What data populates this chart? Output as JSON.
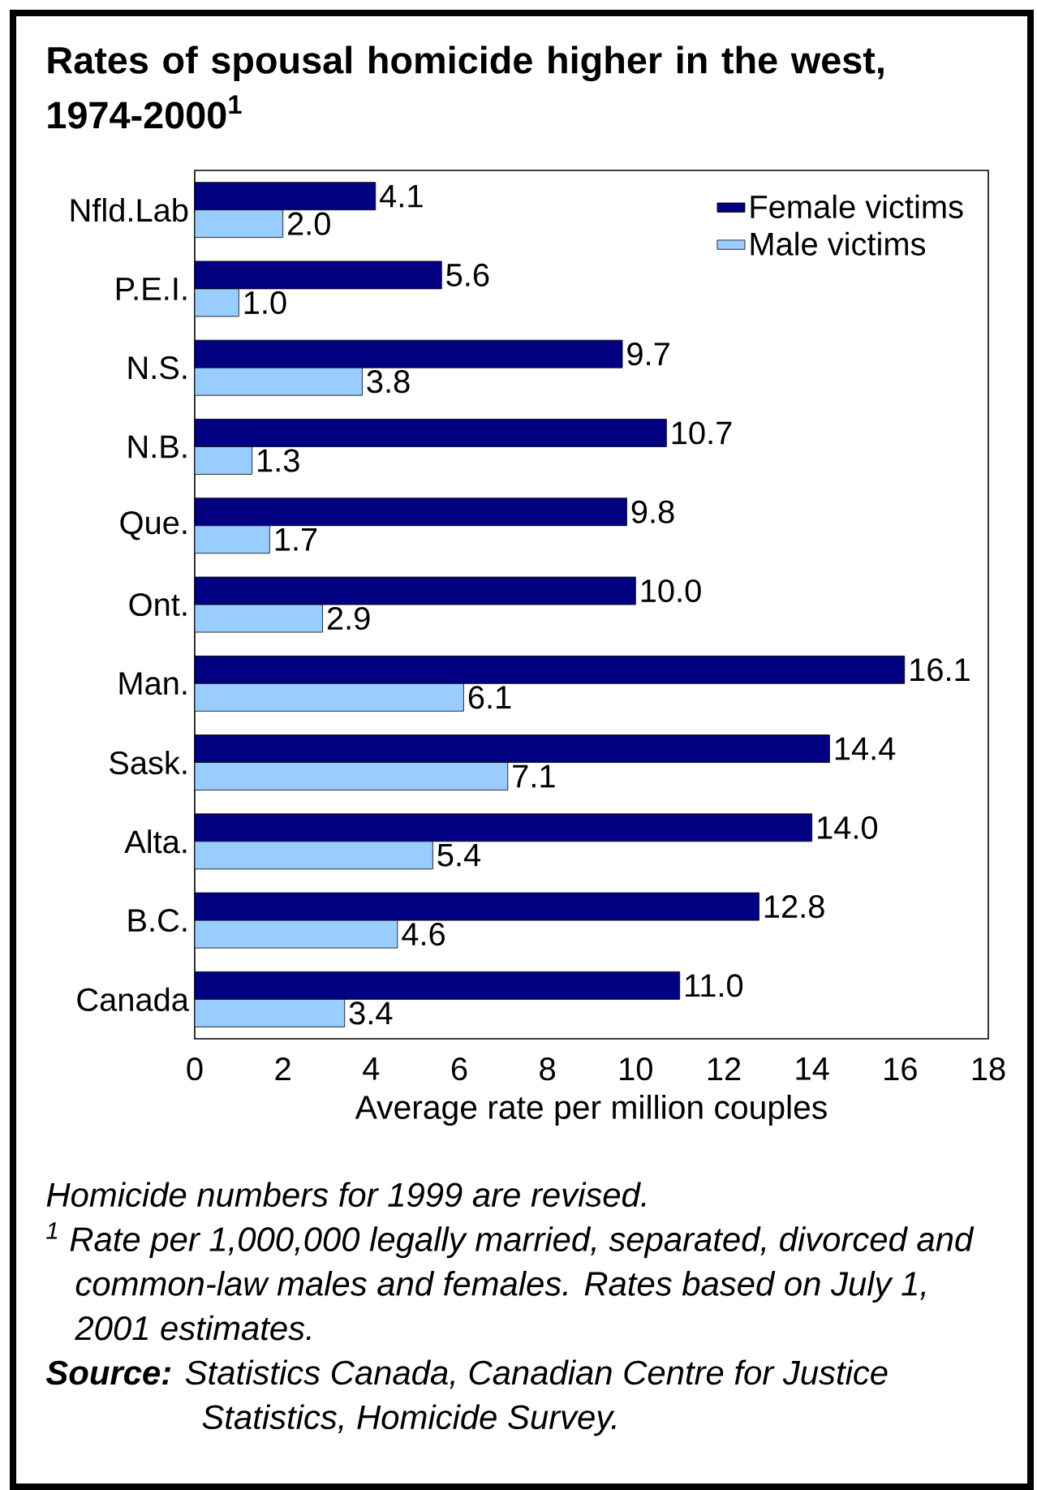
{
  "chart_data": {
    "type": "bar",
    "orientation": "horizontal",
    "title": "Rates of spousal homicide higher in the west, 1974-2000$^{1}$",
    "xlabel": "Average rate per million couples",
    "categories": [
      "Nfld.Lab",
      "P.E.I.",
      "N.S.",
      "N.B.",
      "Que.",
      "Ont.",
      "Man.",
      "Sask.",
      "Alta.",
      "B.C.",
      "Canada"
    ],
    "series": [
      {
        "name": "Female victims",
        "color": "#000080",
        "values": [
          4.1,
          5.6,
          9.7,
          10.7,
          9.8,
          10.0,
          16.1,
          14.4,
          14.0,
          12.8,
          11.0
        ],
        "value_labels": [
          "4.1",
          "5.6",
          "9.7",
          "10.7",
          "9.8",
          "10.0",
          "16.1",
          "14.4",
          "14.0",
          "12.8",
          "11.0"
        ]
      },
      {
        "name": "Male victims",
        "color": "#99ccff",
        "values": [
          2.0,
          1.0,
          3.8,
          1.3,
          1.7,
          2.9,
          6.1,
          7.1,
          5.4,
          4.6,
          3.4
        ],
        "value_labels": [
          "2.0",
          "1.0",
          "3.8",
          "1.3",
          "1.7",
          "2.9",
          "6.1",
          "7.1",
          "5.4",
          "4.6",
          "3.4"
        ]
      }
    ],
    "xlim": [
      0,
      18
    ],
    "xticks": [
      0,
      2,
      4,
      6,
      8,
      10,
      12,
      14,
      16,
      18
    ],
    "legend": "top right",
    "annotations": [
      "Homicide numbers for 1999 are revised.",
      "$^{1}$ Rate per 1,000,000 legally married, separated, divorced and common-law males and females.  Rates based on July 1, 2001 estimates.",
      "**Source:** Statistics Canada, Canadian Centre for Justice Statistics, Homicide Survey."
    ]
  }
}
